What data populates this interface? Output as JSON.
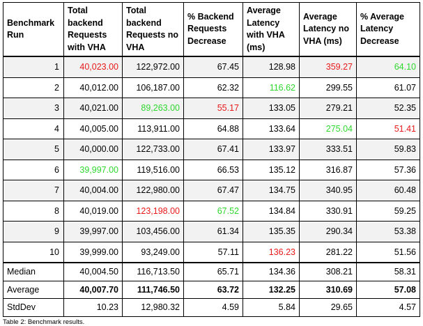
{
  "table": {
    "headers": [
      "Benchmark Run",
      "Total backend Requests with VHA",
      "Total backend Requests no VHA",
      "% Backend Requests Decrease",
      "Average Latency with VHA (ms)",
      "Average Latency no VHA (ms)",
      "% Average Latency Decrease"
    ],
    "rows": [
      [
        "1",
        "40,023.00",
        "122,972.00",
        "67.45",
        "128.98",
        "359.27",
        "64.10"
      ],
      [
        "2",
        "40,012.00",
        "106,187.00",
        "62.32",
        "116.62",
        "299.55",
        "61.07"
      ],
      [
        "3",
        "40,021.00",
        "89,263.00",
        "55.17",
        "133.05",
        "279.21",
        "52.35"
      ],
      [
        "4",
        "40,005.00",
        "113,911.00",
        "64.88",
        "133.64",
        "275.04",
        "51.41"
      ],
      [
        "5",
        "40,000.00",
        "122,733.00",
        "67.41",
        "133.97",
        "333.51",
        "59.83"
      ],
      [
        "6",
        "39,997.00",
        "119,516.00",
        "66.53",
        "135.12",
        "316.87",
        "57.36"
      ],
      [
        "7",
        "40,004.00",
        "122,980.00",
        "67.47",
        "134.75",
        "340.95",
        "60.48"
      ],
      [
        "8",
        "40,019.00",
        "123,198.00",
        "67.52",
        "134.84",
        "330.91",
        "59.25"
      ],
      [
        "9",
        "39,997.00",
        "103,456.00",
        "61.34",
        "135.35",
        "290.34",
        "53.38"
      ],
      [
        "10",
        "39,999.00",
        "93,249.00",
        "57.11",
        "136.23",
        "281.22",
        "51.56"
      ]
    ],
    "summary": [
      [
        "Median",
        "40,004.50",
        "116,713.50",
        "65.71",
        "134.36",
        "308.21",
        "58.31"
      ],
      [
        "Average",
        "40,007.70",
        "111,746.50",
        "63.72",
        "132.25",
        "310.69",
        "57.08"
      ],
      [
        "StdDev",
        "10.23",
        "12,980.32",
        "4.59",
        "5.84",
        "29.65",
        "4.57"
      ]
    ],
    "highlights": {
      "red": [
        [
          0,
          1
        ],
        [
          0,
          5
        ],
        [
          2,
          3
        ],
        [
          3,
          6
        ],
        [
          7,
          2
        ],
        [
          9,
          4
        ]
      ],
      "green": [
        [
          0,
          6
        ],
        [
          1,
          4
        ],
        [
          2,
          2
        ],
        [
          3,
          5
        ],
        [
          5,
          1
        ],
        [
          7,
          3
        ]
      ]
    },
    "colors": {
      "red": "#e8191b",
      "green": "#2fd82f"
    }
  },
  "caption": "Table 2: Benchmark results."
}
